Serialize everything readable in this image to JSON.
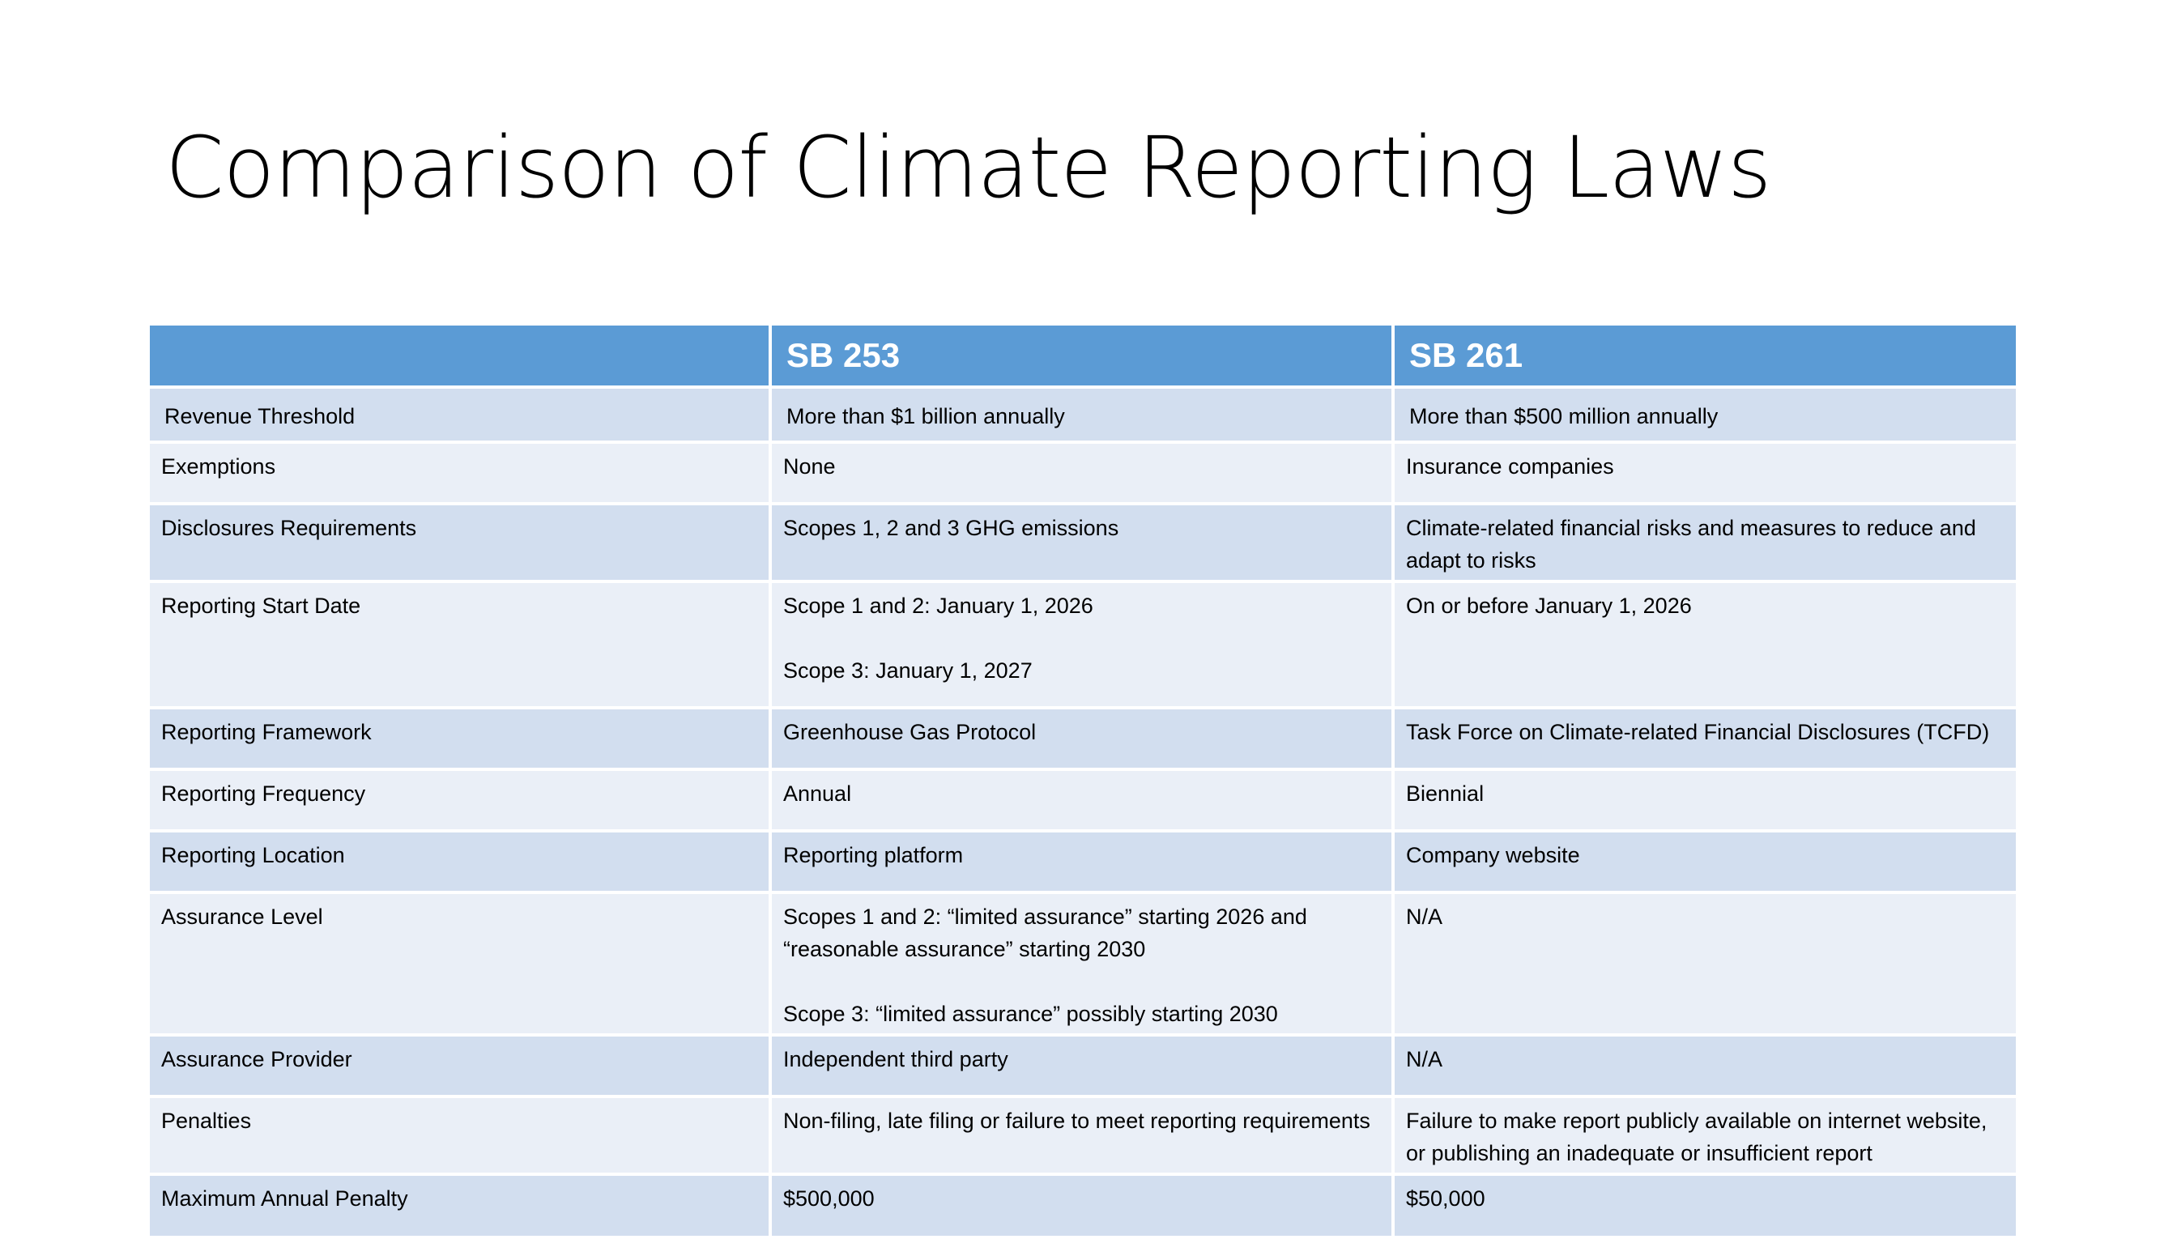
{
  "slide": {
    "title": "Comparison of Climate Reporting Laws"
  },
  "table": {
    "headers": [
      "",
      "SB 253",
      "SB 261"
    ],
    "rows": [
      {
        "label": "Revenue Threshold",
        "sb253": [
          "More than $1 billion annually"
        ],
        "sb261": [
          "More than $500 million annually"
        ]
      },
      {
        "label": "Exemptions",
        "sb253": [
          "None"
        ],
        "sb261": [
          "Insurance companies"
        ]
      },
      {
        "label": "Disclosures Requirements",
        "sb253": [
          "Scopes 1, 2 and 3 GHG emissions"
        ],
        "sb261": [
          "Climate-related financial risks and measures to reduce and adapt to risks"
        ]
      },
      {
        "label": "Reporting Start Date",
        "sb253": [
          "Scope 1 and 2: January 1, 2026",
          "Scope 3: January 1, 2027"
        ],
        "sb261": [
          "On or before January 1, 2026"
        ]
      },
      {
        "label": "Reporting Framework",
        "sb253": [
          "Greenhouse Gas Protocol"
        ],
        "sb261": [
          "Task Force on Climate-related Financial Disclosures (TCFD)"
        ]
      },
      {
        "label": "Reporting Frequency",
        "sb253": [
          "Annual"
        ],
        "sb261": [
          "Biennial"
        ]
      },
      {
        "label": "Reporting Location",
        "sb253": [
          "Reporting platform"
        ],
        "sb261": [
          "Company website"
        ]
      },
      {
        "label": "Assurance Level",
        "sb253": [
          "Scopes 1 and 2: “limited assurance” starting 2026 and “reasonable assurance” starting 2030",
          "Scope 3: “limited assurance” possibly starting 2030"
        ],
        "sb261": [
          "N/A"
        ]
      },
      {
        "label": "Assurance Provider",
        "sb253": [
          "Independent third party"
        ],
        "sb261": [
          "N/A"
        ]
      },
      {
        "label": "Penalties",
        "sb253": [
          "Non-filing, late filing or failure to meet reporting requirements"
        ],
        "sb261": [
          "Failure to make report publicly available on internet website, or publishing an inadequate or insufficient report"
        ]
      },
      {
        "label": "Maximum Annual Penalty",
        "sb253": [
          "$500,000"
        ],
        "sb261": [
          "$50,000"
        ]
      }
    ]
  },
  "colors": {
    "header_bg": "#5b9bd5",
    "row_dark": "#d2deef",
    "row_light": "#eaeff7"
  }
}
